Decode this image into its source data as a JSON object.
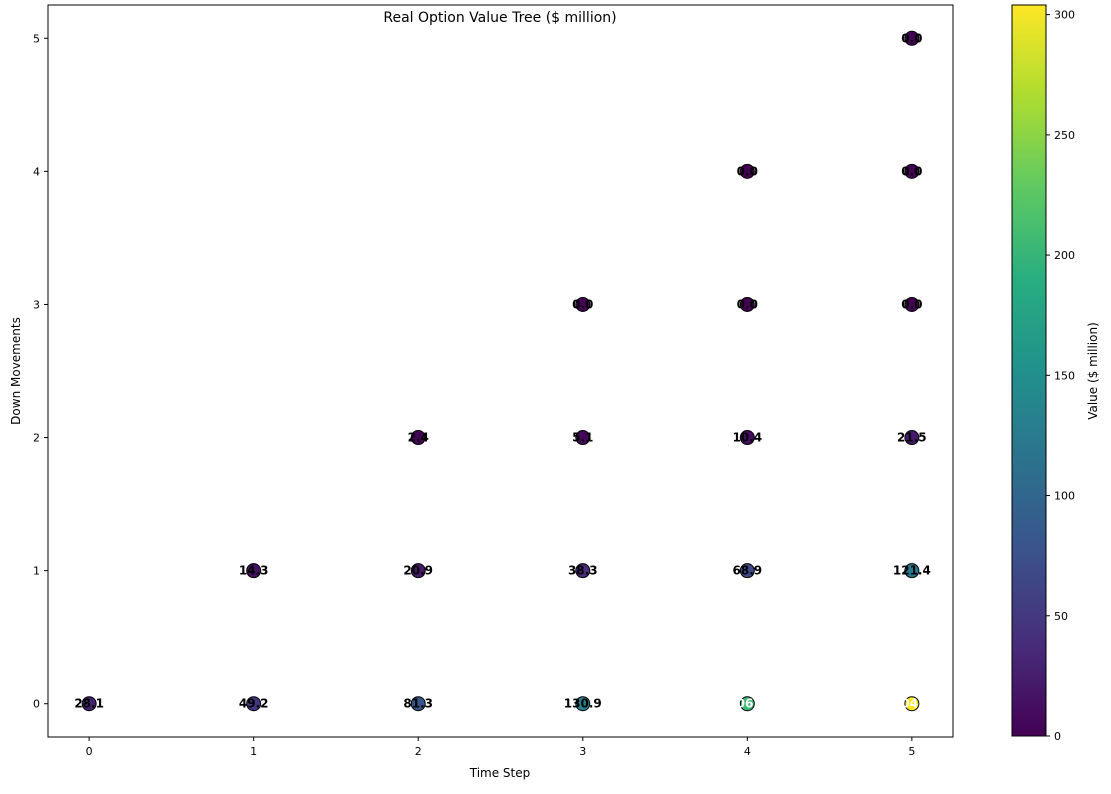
{
  "chart_data": {
    "type": "scatter",
    "title": "Real Option Value Tree ($ million)",
    "xlabel": "Time Step",
    "ylabel": "Down Movements",
    "xlim": [
      -0.25,
      5.25
    ],
    "ylim": [
      -0.25,
      5.25
    ],
    "xticks": [
      "0",
      "1",
      "2",
      "3",
      "4",
      "5"
    ],
    "yticks": [
      "0",
      "1",
      "2",
      "3",
      "4",
      "5"
    ],
    "grid": false,
    "colormap": "viridis",
    "colorbar": {
      "label": "Value ($ million)",
      "range": [
        0,
        304
      ],
      "ticks": [
        "0",
        "50",
        "100",
        "150",
        "200",
        "250",
        "300"
      ]
    },
    "points": [
      {
        "x": 0,
        "y": 0,
        "value": 28.1,
        "label": "28.1"
      },
      {
        "x": 1,
        "y": 0,
        "value": 49.2,
        "label": "49.2"
      },
      {
        "x": 1,
        "y": 1,
        "value": 14.3,
        "label": "14.3"
      },
      {
        "x": 2,
        "y": 0,
        "value": 81.3,
        "label": "81.3"
      },
      {
        "x": 2,
        "y": 1,
        "value": 20.9,
        "label": "20.9"
      },
      {
        "x": 2,
        "y": 2,
        "value": 2.4,
        "label": "2.4"
      },
      {
        "x": 3,
        "y": 0,
        "value": 130.9,
        "label": "130.9"
      },
      {
        "x": 3,
        "y": 1,
        "value": 38.3,
        "label": "38.3"
      },
      {
        "x": 3,
        "y": 2,
        "value": 5.1,
        "label": "5.1"
      },
      {
        "x": 3,
        "y": 3,
        "value": 0.0,
        "label": "0.0"
      },
      {
        "x": 4,
        "y": 0,
        "value": 206.3,
        "label": "206.3"
      },
      {
        "x": 4,
        "y": 1,
        "value": 68.9,
        "label": "68.9"
      },
      {
        "x": 4,
        "y": 2,
        "value": 10.4,
        "label": "10.4"
      },
      {
        "x": 4,
        "y": 3,
        "value": 0.0,
        "label": "0.0"
      },
      {
        "x": 4,
        "y": 4,
        "value": 0.0,
        "label": "0.0"
      },
      {
        "x": 5,
        "y": 0,
        "value": 304.3,
        "label": "304.3"
      },
      {
        "x": 5,
        "y": 1,
        "value": 121.4,
        "label": "121.4"
      },
      {
        "x": 5,
        "y": 2,
        "value": 21.5,
        "label": "21.5"
      },
      {
        "x": 5,
        "y": 3,
        "value": 0.0,
        "label": "0.0"
      },
      {
        "x": 5,
        "y": 4,
        "value": 0.0,
        "label": "0.0"
      },
      {
        "x": 5,
        "y": 5,
        "value": 0.0,
        "label": "0.0"
      }
    ]
  }
}
